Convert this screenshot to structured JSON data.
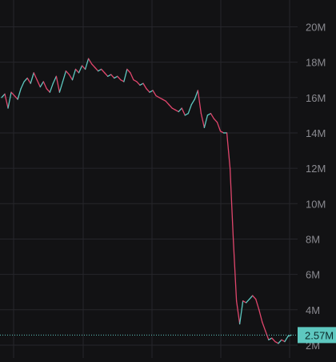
{
  "chart_data": {
    "type": "line",
    "title": "",
    "xlabel": "",
    "ylabel": "",
    "ylim": [
      1.5,
      20.7
    ],
    "y_unit": "M",
    "y_ticks": [
      {
        "value": 2,
        "label": "2M"
      },
      {
        "value": 4,
        "label": "4M"
      },
      {
        "value": 6,
        "label": "6M"
      },
      {
        "value": 8,
        "label": "8M"
      },
      {
        "value": 10,
        "label": "10M"
      },
      {
        "value": 12,
        "label": "12M"
      },
      {
        "value": 14,
        "label": "14M"
      },
      {
        "value": 16,
        "label": "16M"
      },
      {
        "value": 18,
        "label": "18M"
      },
      {
        "value": 20,
        "label": "20M"
      }
    ],
    "grid": true,
    "last_value": 2.57,
    "last_value_label": "2.57M",
    "colors": {
      "up": "#5ec8c0",
      "down": "#e0466c",
      "grid": "#26262b",
      "axis_text": "#8a8a90",
      "price_line": "#5ec8c0",
      "price_label_bg": "#5ec8c0",
      "price_label_text": "#0c2a2a"
    },
    "series": [
      {
        "values": [
          16.0,
          16.2,
          15.4,
          16.3,
          16.1,
          15.9,
          16.5,
          16.9,
          17.1,
          16.8,
          17.4,
          17.0,
          16.6,
          16.9,
          16.5,
          16.3,
          16.8,
          17.2,
          16.3,
          16.9,
          17.5,
          17.3,
          17.0,
          17.6,
          17.4,
          17.8,
          17.6,
          18.2,
          17.9,
          17.7,
          17.5,
          17.6,
          17.4,
          17.2,
          17.3,
          17.1,
          17.2,
          17.0,
          16.9,
          17.6,
          17.4,
          17.0,
          16.9,
          16.7,
          16.8,
          16.5,
          16.3,
          16.4,
          16.1,
          16.0,
          15.9,
          15.8,
          15.6,
          15.4,
          15.3,
          15.2,
          15.4,
          15.0,
          15.1,
          15.6,
          15.9,
          16.4,
          15.1,
          14.3,
          15.0,
          15.1,
          14.8,
          14.6,
          14.1,
          14.0,
          14.0,
          12.0,
          8.0,
          4.5,
          3.2,
          4.5,
          4.4,
          4.6,
          4.8,
          4.6,
          4.0,
          3.3,
          2.8,
          2.3,
          2.4,
          2.2,
          2.1,
          2.3,
          2.2,
          2.5,
          2.57
        ]
      }
    ]
  }
}
